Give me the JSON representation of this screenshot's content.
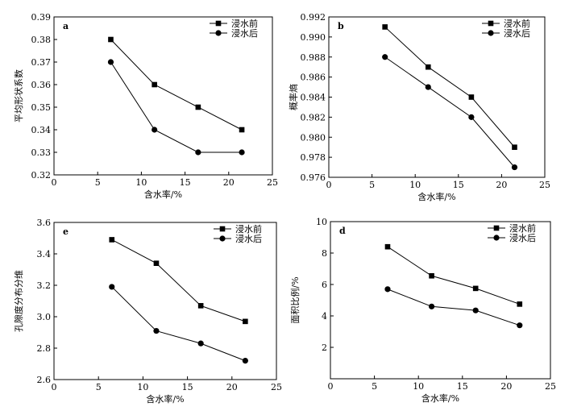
{
  "chart_data": [
    {
      "panel": "a",
      "type": "line",
      "xlabel": "含水率/%",
      "ylabel": "平均形状系数",
      "xlim": [
        0,
        25
      ],
      "ylim": [
        0.32,
        0.39
      ],
      "xticks": [
        "0",
        "5",
        "10",
        "15",
        "20",
        "25"
      ],
      "yticks": [
        "0.32",
        "0.33",
        "0.34",
        "0.35",
        "0.36",
        "0.37",
        "0.38",
        "0.39"
      ],
      "x": [
        6.5,
        11.5,
        16.5,
        21.5
      ],
      "series": [
        {
          "name": "浸水前",
          "marker": "square",
          "values": [
            0.38,
            0.36,
            0.35,
            0.34
          ]
        },
        {
          "name": "浸水后",
          "marker": "circle",
          "values": [
            0.37,
            0.34,
            0.33,
            0.33
          ]
        }
      ],
      "grid": false,
      "legend": "top-right"
    },
    {
      "panel": "b",
      "type": "line",
      "xlabel": "含水率/%",
      "ylabel": "概率熵",
      "xlim": [
        0,
        25
      ],
      "ylim": [
        0.976,
        0.992
      ],
      "xticks": [
        "0",
        "5",
        "10",
        "15",
        "20",
        "25"
      ],
      "yticks": [
        "0.976",
        "0.978",
        "0.980",
        "0.982",
        "0.984",
        "0.986",
        "0.988",
        "0.990",
        "0.992"
      ],
      "x": [
        6.5,
        11.5,
        16.5,
        21.5
      ],
      "series": [
        {
          "name": "浸水前",
          "marker": "square",
          "values": [
            0.991,
            0.987,
            0.984,
            0.979
          ]
        },
        {
          "name": "浸水后",
          "marker": "circle",
          "values": [
            0.988,
            0.985,
            0.982,
            0.977
          ]
        }
      ],
      "grid": false,
      "legend": "top-right"
    },
    {
      "panel": "e",
      "type": "line",
      "xlabel": "含水率/%",
      "ylabel": "孔隙度分布分维",
      "xlim": [
        0,
        25
      ],
      "ylim": [
        2.6,
        3.6
      ],
      "xticks": [
        "0",
        "5",
        "10",
        "15",
        "20",
        "25"
      ],
      "yticks": [
        "2.6",
        "2.8",
        "3.0",
        "3.2",
        "3.4",
        "3.6"
      ],
      "x": [
        6.5,
        11.5,
        16.5,
        21.5
      ],
      "series": [
        {
          "name": "浸水前",
          "marker": "square",
          "values": [
            3.49,
            3.34,
            3.07,
            2.97
          ]
        },
        {
          "name": "浸水后",
          "marker": "circle",
          "values": [
            3.19,
            2.91,
            2.83,
            2.72
          ]
        }
      ],
      "grid": false,
      "legend": "top-right"
    },
    {
      "panel": "d",
      "type": "line",
      "xlabel": "含水率/%",
      "ylabel": "面积比例/%",
      "xlim": [
        0,
        25
      ],
      "ylim": [
        0,
        10
      ],
      "xticks": [
        "0",
        "5",
        "10",
        "15",
        "20",
        "25"
      ],
      "yticks": [
        "2",
        "4",
        "6",
        "8",
        "10"
      ],
      "x": [
        6.5,
        11.5,
        16.5,
        21.5
      ],
      "series": [
        {
          "name": "浸水前",
          "marker": "square",
          "values": [
            8.4,
            6.55,
            5.75,
            4.75
          ]
        },
        {
          "name": "浸水后",
          "marker": "circle",
          "values": [
            5.7,
            4.6,
            4.35,
            3.4
          ]
        }
      ],
      "grid": false,
      "legend": "top-right"
    }
  ]
}
